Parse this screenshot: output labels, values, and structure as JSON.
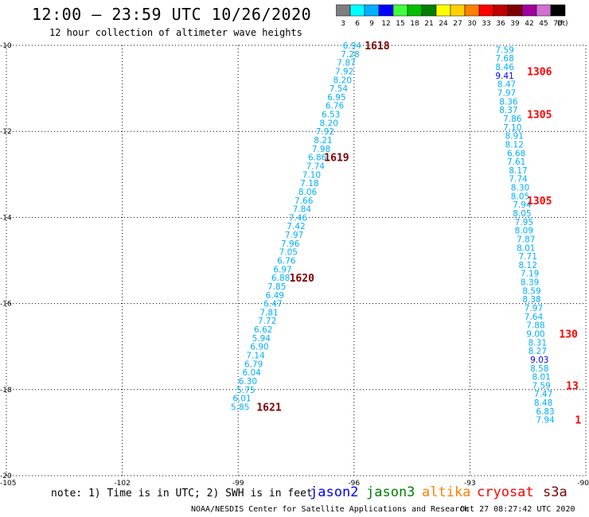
{
  "header": {
    "title": "12:00 – 23:59 UTC 10/26/2020",
    "subtitle": "12 hour collection of altimeter wave heights"
  },
  "scale_legend": {
    "unit": "(ft)",
    "bins": [
      {
        "label": "3",
        "color": "#7f7f7f"
      },
      {
        "label": "6",
        "color": "#00ffff"
      },
      {
        "label": "9",
        "color": "#00b0ff"
      },
      {
        "label": "12",
        "color": "#0000ff"
      },
      {
        "label": "15",
        "color": "#40ff40"
      },
      {
        "label": "18",
        "color": "#00c000"
      },
      {
        "label": "21",
        "color": "#008000"
      },
      {
        "label": "24",
        "color": "#ffff00"
      },
      {
        "label": "27",
        "color": "#ffd000"
      },
      {
        "label": "30",
        "color": "#ff8000"
      },
      {
        "label": "33",
        "color": "#ff0000"
      },
      {
        "label": "36",
        "color": "#c00000"
      },
      {
        "label": "39",
        "color": "#800000"
      },
      {
        "label": "42",
        "color": "#a000a0"
      },
      {
        "label": "45",
        "color": "#d070d0"
      },
      {
        "label": "70",
        "color": "#000000"
      }
    ]
  },
  "note": "note: 1) Time is in UTC; 2) SWH is in feet",
  "missions": [
    {
      "label": "jason2",
      "color": "#0000ff"
    },
    {
      "label": "jason3",
      "color": "#008000"
    },
    {
      "label": "altika",
      "color": "#ff8000"
    },
    {
      "label": "cryosat",
      "color": "#ff0000"
    },
    {
      "label": "s3a",
      "color": "#800000"
    }
  ],
  "footer": {
    "credit": "NOAA/NESDIS Center for Satellite Applications and Research",
    "timestamp": "Oct 27 08:27:42 UTC 2020"
  },
  "chart_data": {
    "type": "scatter",
    "xlim": [
      -105,
      -90
    ],
    "ylim": [
      -20,
      -10
    ],
    "x_ticks": [
      -105,
      -102,
      -99,
      -96,
      -93,
      -90
    ],
    "y_ticks": [
      -10,
      -12,
      -14,
      -16,
      -18,
      -20
    ],
    "grid": true,
    "colors": {
      "cyan_label": "#00b0ff",
      "blue_label": "#0000ff",
      "time_dark": "#800000",
      "time_red": "#ff0000"
    },
    "tracks": [
      {
        "points": [
          {
            "x": -96.05,
            "y": -10.0,
            "v": "6.94"
          },
          {
            "x": -96.1,
            "y": -10.2,
            "v": "7.28"
          },
          {
            "x": -96.2,
            "y": -10.4,
            "v": "7.87"
          },
          {
            "x": -96.25,
            "y": -10.6,
            "v": "7.92"
          },
          {
            "x": -96.3,
            "y": -10.8,
            "v": "8.20"
          },
          {
            "x": -96.4,
            "y": -11.0,
            "v": "7.54"
          },
          {
            "x": -96.45,
            "y": -11.2,
            "v": "6.95"
          },
          {
            "x": -96.5,
            "y": -11.4,
            "v": "6.76"
          },
          {
            "x": -96.6,
            "y": -11.6,
            "v": "6.53"
          },
          {
            "x": -96.65,
            "y": -11.8,
            "v": "8.20"
          },
          {
            "x": -96.75,
            "y": -12.0,
            "v": "7.92"
          },
          {
            "x": -96.8,
            "y": -12.2,
            "v": "8.21"
          },
          {
            "x": -96.85,
            "y": -12.4,
            "v": "7.98"
          },
          {
            "x": -96.95,
            "y": -12.6,
            "v": "6.86"
          },
          {
            "x": -97.0,
            "y": -12.8,
            "v": "7.74"
          },
          {
            "x": -97.1,
            "y": -13.0,
            "v": "7.10"
          },
          {
            "x": -97.15,
            "y": -13.2,
            "v": "7.18"
          },
          {
            "x": -97.2,
            "y": -13.4,
            "v": "8.06"
          },
          {
            "x": -97.3,
            "y": -13.6,
            "v": "7.66"
          },
          {
            "x": -97.35,
            "y": -13.8,
            "v": "7.84"
          },
          {
            "x": -97.45,
            "y": -14.0,
            "v": "7.46"
          },
          {
            "x": -97.5,
            "y": -14.2,
            "v": "7.42"
          },
          {
            "x": -97.55,
            "y": -14.4,
            "v": "7.97"
          },
          {
            "x": -97.65,
            "y": -14.6,
            "v": "7.96"
          },
          {
            "x": -97.7,
            "y": -14.8,
            "v": "7.05"
          },
          {
            "x": -97.75,
            "y": -15.0,
            "v": "6.76"
          },
          {
            "x": -97.85,
            "y": -15.2,
            "v": "6.97"
          },
          {
            "x": -97.9,
            "y": -15.4,
            "v": "6.88"
          },
          {
            "x": -98.0,
            "y": -15.6,
            "v": "7.85"
          },
          {
            "x": -98.05,
            "y": -15.8,
            "v": "6.49"
          },
          {
            "x": -98.1,
            "y": -16.0,
            "v": "6.47"
          },
          {
            "x": -98.2,
            "y": -16.2,
            "v": "7.81"
          },
          {
            "x": -98.25,
            "y": -16.4,
            "v": "7.72"
          },
          {
            "x": -98.35,
            "y": -16.6,
            "v": "6.62"
          },
          {
            "x": -98.4,
            "y": -16.8,
            "v": "5.94"
          },
          {
            "x": -98.45,
            "y": -17.0,
            "v": "6.90"
          },
          {
            "x": -98.55,
            "y": -17.2,
            "v": "7.14"
          },
          {
            "x": -98.6,
            "y": -17.4,
            "v": "6.79"
          },
          {
            "x": -98.65,
            "y": -17.6,
            "v": "6.04"
          },
          {
            "x": -98.75,
            "y": -17.8,
            "v": "6.30"
          },
          {
            "x": -98.8,
            "y": -18.0,
            "v": "5.75"
          },
          {
            "x": -98.9,
            "y": -18.2,
            "v": "6.01"
          },
          {
            "x": -98.95,
            "y": -18.4,
            "v": "5.85"
          }
        ],
        "times": [
          {
            "x": -95.4,
            "y": -10.0,
            "label": "1618"
          },
          {
            "x": -96.45,
            "y": -12.6,
            "label": "1619"
          },
          {
            "x": -97.35,
            "y": -15.4,
            "label": "1620"
          },
          {
            "x": -98.2,
            "y": -18.4,
            "label": "1621"
          }
        ]
      },
      {
        "points": [
          {
            "x": -92.1,
            "y": -10.1,
            "v": "7.59"
          },
          {
            "x": -92.1,
            "y": -10.3,
            "v": "7.68"
          },
          {
            "x": -92.1,
            "y": -10.5,
            "v": "8.46"
          },
          {
            "x": -92.1,
            "y": -10.7,
            "v": "9.41",
            "highlight": true
          },
          {
            "x": -92.05,
            "y": -10.9,
            "v": "8.47"
          },
          {
            "x": -92.05,
            "y": -11.1,
            "v": "7.97"
          },
          {
            "x": -92.0,
            "y": -11.3,
            "v": "8.36"
          },
          {
            "x": -92.0,
            "y": -11.5,
            "v": "8.37"
          },
          {
            "x": -91.9,
            "y": -11.7,
            "v": "7.86"
          },
          {
            "x": -91.9,
            "y": -11.9,
            "v": "7.10"
          },
          {
            "x": -91.85,
            "y": -12.1,
            "v": "8.91"
          },
          {
            "x": -91.85,
            "y": -12.3,
            "v": "8.12"
          },
          {
            "x": -91.8,
            "y": -12.5,
            "v": "6.68"
          },
          {
            "x": -91.8,
            "y": -12.7,
            "v": "7.61"
          },
          {
            "x": -91.75,
            "y": -12.9,
            "v": "8.17"
          },
          {
            "x": -91.75,
            "y": -13.1,
            "v": "7.74"
          },
          {
            "x": -91.7,
            "y": -13.3,
            "v": "8.30"
          },
          {
            "x": -91.7,
            "y": -13.5,
            "v": "8.05"
          },
          {
            "x": -91.65,
            "y": -13.7,
            "v": "7.94"
          },
          {
            "x": -91.65,
            "y": -13.9,
            "v": "8.05"
          },
          {
            "x": -91.6,
            "y": -14.1,
            "v": "7.95"
          },
          {
            "x": -91.6,
            "y": -14.3,
            "v": "8.09"
          },
          {
            "x": -91.55,
            "y": -14.5,
            "v": "7.87"
          },
          {
            "x": -91.55,
            "y": -14.7,
            "v": "8.01"
          },
          {
            "x": -91.5,
            "y": -14.9,
            "v": "7.71"
          },
          {
            "x": -91.5,
            "y": -15.1,
            "v": "8.12"
          },
          {
            "x": -91.45,
            "y": -15.3,
            "v": "7.19"
          },
          {
            "x": -91.45,
            "y": -15.5,
            "v": "8.39"
          },
          {
            "x": -91.4,
            "y": -15.7,
            "v": "8.59"
          },
          {
            "x": -91.4,
            "y": -15.9,
            "v": "8.38"
          },
          {
            "x": -91.35,
            "y": -16.1,
            "v": "7.97"
          },
          {
            "x": -91.35,
            "y": -16.3,
            "v": "7.64"
          },
          {
            "x": -91.3,
            "y": -16.5,
            "v": "7.88"
          },
          {
            "x": -91.3,
            "y": -16.7,
            "v": "9.00"
          },
          {
            "x": -91.25,
            "y": -16.9,
            "v": "8.31"
          },
          {
            "x": -91.25,
            "y": -17.1,
            "v": "8.27"
          },
          {
            "x": -91.2,
            "y": -17.3,
            "v": "9.03",
            "highlight": true
          },
          {
            "x": -91.2,
            "y": -17.5,
            "v": "8.58"
          },
          {
            "x": -91.15,
            "y": -17.7,
            "v": "8.01"
          },
          {
            "x": -91.15,
            "y": -17.9,
            "v": "7.59"
          },
          {
            "x": -91.1,
            "y": -18.1,
            "v": "7.47"
          },
          {
            "x": -91.1,
            "y": -18.3,
            "v": "8.48"
          },
          {
            "x": -91.05,
            "y": -18.5,
            "v": "6.83"
          },
          {
            "x": -91.05,
            "y": -18.7,
            "v": "7.94"
          }
        ],
        "times": [
          {
            "x": -91.2,
            "y": -10.6,
            "label": "1306"
          },
          {
            "x": -91.2,
            "y": -11.6,
            "label": "1305"
          },
          {
            "x": -91.2,
            "y": -13.6,
            "label": "1305"
          },
          {
            "x": -90.45,
            "y": -16.7,
            "label": "130"
          },
          {
            "x": -90.35,
            "y": -17.9,
            "label": "13"
          },
          {
            "x": -90.2,
            "y": -18.7,
            "label": "1"
          }
        ]
      }
    ]
  }
}
